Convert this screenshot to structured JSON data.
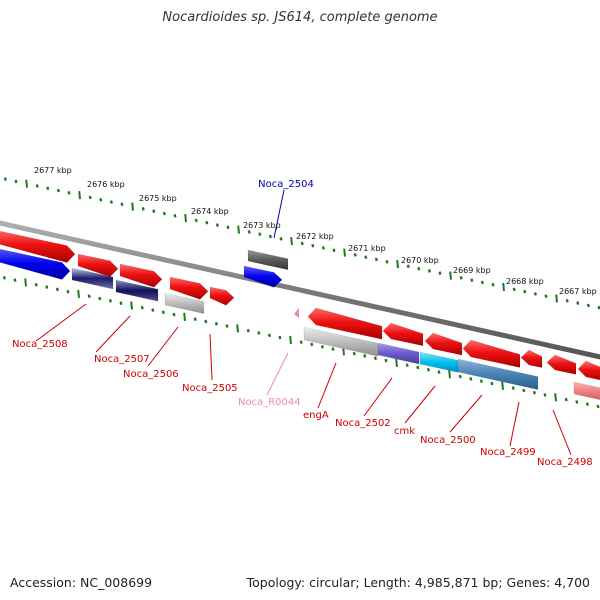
{
  "title": "Nocardioides sp. JS614, complete genome",
  "accession": "Accession: NC_008699",
  "summary": "Topology: circular; Length: 4,985,871 bp; Genes: 4,700",
  "colors": {
    "backbone": "#8c8c8c",
    "tick": "#1f7a1f",
    "gene_forward": "#ee1111",
    "gene_plain": "#aaaaaa",
    "label_gene": "#cc0000",
    "label_top": "#0000aa",
    "label_rna": "#ee88bb"
  },
  "scale": {
    "unit": "kbp",
    "labels": [
      "2677 kbp",
      "2676 kbp",
      "2675 kbp",
      "2674 kbp",
      "2673 kbp",
      "2672 kbp",
      "2671 kbp",
      "2670 kbp",
      "2669 kbp",
      "2668 kbp",
      "2667 kbp"
    ]
  },
  "genes": [
    {
      "label": "Noca_2504",
      "label_color": "#0000aa"
    },
    {
      "label": "Noca_2508",
      "label_color": "#cc0000"
    },
    {
      "label": "Noca_2507",
      "label_color": "#cc0000"
    },
    {
      "label": "Noca_2506",
      "label_color": "#cc0000"
    },
    {
      "label": "Noca_2505",
      "label_color": "#cc0000"
    },
    {
      "label": "Noca_R0044",
      "label_color": "#ee88bb"
    },
    {
      "label": "engA",
      "label_color": "#cc0000"
    },
    {
      "label": "Noca_2502",
      "label_color": "#cc0000"
    },
    {
      "label": "cmk",
      "label_color": "#cc0000"
    },
    {
      "label": "Noca_2500",
      "label_color": "#cc0000"
    },
    {
      "label": "Noca_2499",
      "label_color": "#cc0000"
    },
    {
      "label": "Noca_2498",
      "label_color": "#cc0000"
    }
  ]
}
